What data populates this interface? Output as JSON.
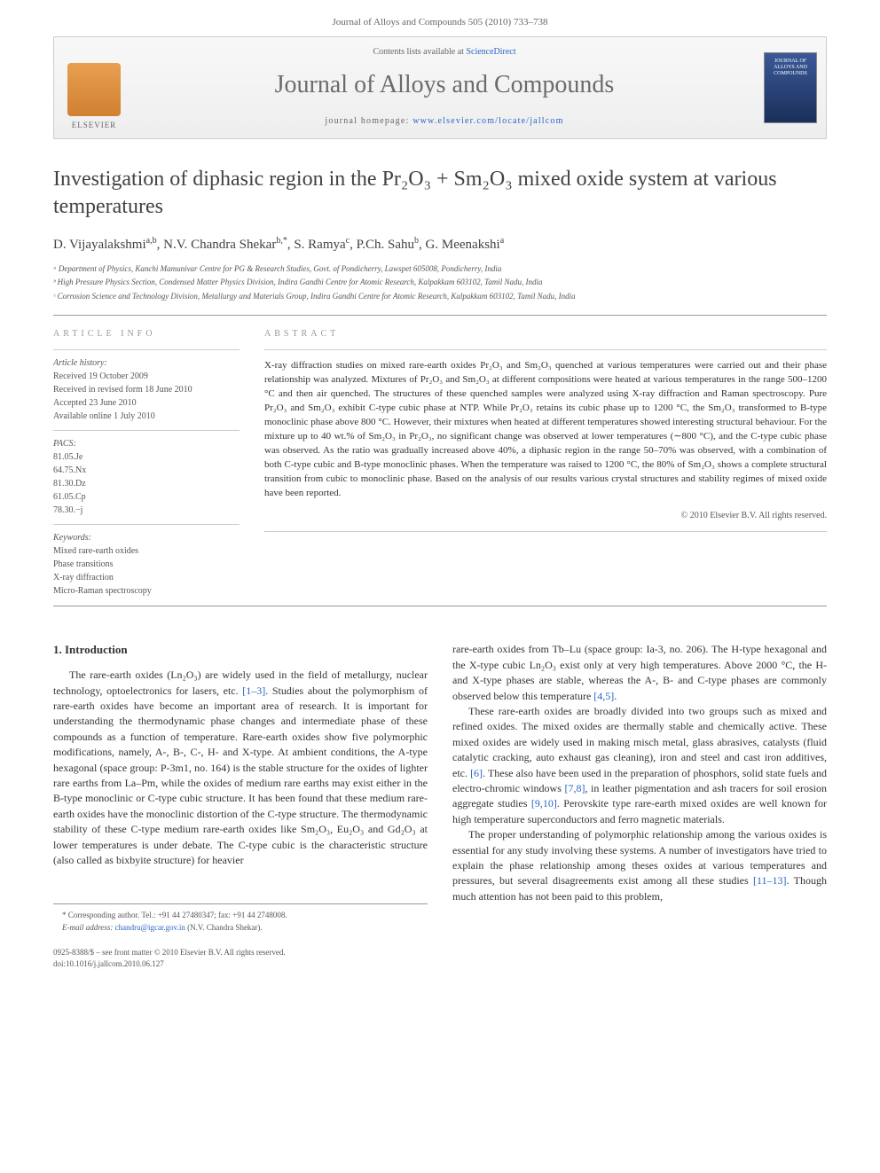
{
  "header": {
    "citation": "Journal of Alloys and Compounds 505 (2010) 733–738"
  },
  "banner": {
    "contents_prefix": "Contents lists available at ",
    "contents_link": "ScienceDirect",
    "journal_name": "Journal of Alloys and Compounds",
    "homepage_prefix": "journal homepage: ",
    "homepage_url": "www.elsevier.com/locate/jallcom",
    "publisher_label": "ELSEVIER",
    "cover_text": "JOURNAL OF ALLOYS AND COMPOUNDS"
  },
  "title": "Investigation of diphasic region in the Pr₂O₃ + Sm₂O₃ mixed oxide system at various temperatures",
  "authors_html": "D. Vijayalakshmi<sup>a,b</sup>, N.V. Chandra Shekar<sup>b,*</sup>, S. Ramya<sup>c</sup>, P.Ch. Sahu<sup>b</sup>, G. Meenakshi<sup>a</sup>",
  "affiliations": [
    "ᵃ Department of Physics, Kanchi Mamunivar Centre for PG & Research Studies, Govt. of Pondicherry, Lawspet 605008, Pondicherry, India",
    "ᵇ High Pressure Physics Section, Condensed Matter Physics Division, Indira Gandhi Centre for Atomic Research, Kalpakkam 603102, Tamil Nadu, India",
    "ᶜ Corrosion Science and Technology Division, Metallurgy and Materials Group, Indira Gandhi Centre for Atomic Research, Kalpakkam 603102, Tamil Nadu, India"
  ],
  "article_info": {
    "heading": "ARTICLE INFO",
    "history_label": "Article history:",
    "history": [
      "Received 19 October 2009",
      "Received in revised form 18 June 2010",
      "Accepted 23 June 2010",
      "Available online 1 July 2010"
    ],
    "pacs_label": "PACS:",
    "pacs": [
      "81.05.Je",
      "64.75.Nx",
      "81.30.Dz",
      "61.05.Cp",
      "78.30.−j"
    ],
    "keywords_label": "Keywords:",
    "keywords": [
      "Mixed rare-earth oxides",
      "Phase transitions",
      "X-ray diffraction",
      "Micro-Raman spectroscopy"
    ]
  },
  "abstract": {
    "heading": "ABSTRACT",
    "text": "X-ray diffraction studies on mixed rare-earth oxides Pr₂O₃ and Sm₂O₃ quenched at various temperatures were carried out and their phase relationship was analyzed. Mixtures of Pr₂O₃ and Sm₂O₃ at different compositions were heated at various temperatures in the range 500–1200 °C and then air quenched. The structures of these quenched samples were analyzed using X-ray diffraction and Raman spectroscopy. Pure Pr₂O₃ and Sm₂O₃ exhibit C-type cubic phase at NTP. While Pr₂O₃ retains its cubic phase up to 1200 °C, the Sm₂O₃ transformed to B-type monoclinic phase above 800 °C. However, their mixtures when heated at different temperatures showed interesting structural behaviour. For the mixture up to 40 wt.% of Sm₂O₃ in Pr₂O₃, no significant change was observed at lower temperatures (∼800 °C), and the C-type cubic phase was observed. As the ratio was gradually increased above 40%, a diphasic region in the range 50–70% was observed, with a combination of both C-type cubic and B-type monoclinic phases. When the temperature was raised to 1200 °C, the 80% of Sm₂O₃ shows a complete structural transition from cubic to monoclinic phase. Based on the analysis of our results various crystal structures and stability regimes of mixed oxide have been reported.",
    "copyright": "© 2010 Elsevier B.V. All rights reserved."
  },
  "body": {
    "section1_heading": "1. Introduction",
    "col1_p1_pre": "The rare-earth oxides (Ln₂O₃) are widely used in the field of metallurgy, nuclear technology, optoelectronics for lasers, etc. ",
    "col1_ref1": "[1–3]",
    "col1_p1_post": ". Studies about the polymorphism of rare-earth oxides have become an important area of research. It is important for understanding the thermodynamic phase changes and intermediate phase of these compounds as a function of temperature. Rare-earth oxides show five polymorphic modifications, namely, A-, B-, C-, H- and X-type. At ambient conditions, the A-type hexagonal (space group: P-3m1, no. 164) is the stable structure for the oxides of lighter rare earths from La–Pm, while the oxides of medium rare earths may exist either in the B-type monoclinic or C-type cubic structure. It has been found that these medium rare-earth oxides have the monoclinic distortion of the C-type structure. The thermodynamic stability of these C-type medium rare-earth oxides like Sm₂O₃, Eu₂O₃ and Gd₂O₃ at lower temperatures is under debate. The C-type cubic is the characteristic structure (also called as bixbyite structure) for heavier",
    "col2_p1_pre": "rare-earth oxides from Tb–Lu (space group: Ia-3, no. 206). The H-type hexagonal and the X-type cubic Ln₂O₃ exist only at very high temperatures. Above 2000 °C, the H- and X-type phases are stable, whereas the A-, B- and C-type phases are commonly observed below this temperature ",
    "col2_ref1": "[4,5]",
    "col2_p1_post": ".",
    "col2_p2_pre": "These rare-earth oxides are broadly divided into two groups such as mixed and refined oxides. The mixed oxides are thermally stable and chemically active. These mixed oxides are widely used in making misch metal, glass abrasives, catalysts (fluid catalytic cracking, auto exhaust gas cleaning), iron and steel and cast iron additives, etc. ",
    "col2_ref2": "[6]",
    "col2_p2_mid1": ". These also have been used in the preparation of phosphors, solid state fuels and electro-chromic windows ",
    "col2_ref3": "[7,8]",
    "col2_p2_mid2": ", in leather pigmentation and ash tracers for soil erosion aggregate studies ",
    "col2_ref4": "[9,10]",
    "col2_p2_post": ". Perovskite type rare-earth mixed oxides are well known for high temperature superconductors and ferro magnetic materials.",
    "col2_p3_pre": "The proper understanding of polymorphic relationship among the various oxides is essential for any study involving these systems. A number of investigators have tried to explain the phase relationship among theses oxides at various temperatures and pressures, but several disagreements exist among all these studies ",
    "col2_ref5": "[11–13]",
    "col2_p3_post": ". Though much attention has not been paid to this problem,"
  },
  "footnote": {
    "corr_line": "* Corresponding author. Tel.: +91 44 27480347; fax: +91 44 2748008.",
    "email_label": "E-mail address: ",
    "email": "chandru@igcar.gov.in",
    "email_suffix": " (N.V. Chandra Shekar)."
  },
  "footer": {
    "left_line1": "0925-8388/$ – see front matter © 2010 Elsevier B.V. All rights reserved.",
    "left_line2": "doi:10.1016/j.jallcom.2010.06.127"
  }
}
